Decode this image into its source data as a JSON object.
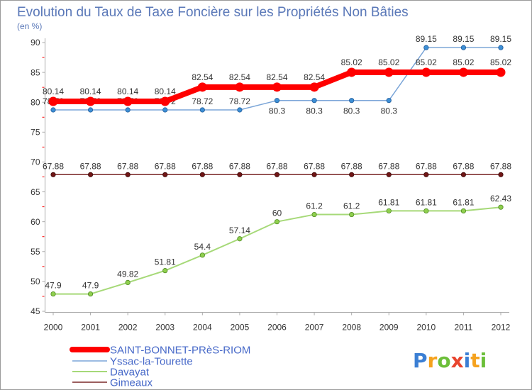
{
  "chart_data": {
    "type": "line",
    "title": "Evolution du Taux de Taxe Foncière sur les Propriétés Non Bâties",
    "subtitle": "(en %)",
    "xlabel": "",
    "ylabel": "",
    "x": [
      2000,
      2001,
      2002,
      2003,
      2004,
      2005,
      2006,
      2007,
      2008,
      2009,
      2010,
      2011,
      2012
    ],
    "ylim": [
      45,
      90
    ],
    "y_ticks": [
      45,
      50,
      55,
      60,
      65,
      70,
      75,
      80,
      85,
      90
    ],
    "grid": false,
    "legend": "bottom-left",
    "series": [
      {
        "name": "SAINT-BONNET-PRèS-RIOM",
        "color": "#ff0000",
        "marker_color": "#ff0000",
        "marker_edge": "#ff0000",
        "values": [
          80.14,
          80.14,
          80.14,
          80.14,
          82.54,
          82.54,
          82.54,
          82.54,
          85.02,
          85.02,
          85.02,
          85.02,
          85.02
        ]
      },
      {
        "name": "Yssac-la-Tourette",
        "color": "#7ca6d8",
        "marker_color": "#3d8fd5",
        "marker_edge": "#1f5a99",
        "values": [
          78.72,
          78.72,
          78.72,
          78.72,
          78.72,
          78.72,
          80.3,
          80.3,
          80.3,
          80.3,
          89.15,
          89.15,
          89.15
        ]
      },
      {
        "name": "Davayat",
        "color": "#a6d978",
        "marker_color": "#8fcf4e",
        "marker_edge": "#4f8a22",
        "values": [
          47.9,
          47.9,
          49.82,
          51.81,
          54.4,
          57.14,
          60,
          61.2,
          61.2,
          61.81,
          61.81,
          61.81,
          62.43
        ]
      },
      {
        "name": "Gimeaux",
        "color": "#7c2a2a",
        "marker_color": "#701515",
        "marker_edge": "#3d0d0d",
        "values": [
          67.88,
          67.88,
          67.88,
          67.88,
          67.88,
          67.88,
          67.88,
          67.88,
          67.88,
          67.88,
          67.88,
          67.88,
          67.88
        ]
      }
    ]
  },
  "theme": {
    "title_color": "#5a78b8",
    "legend_text_color": "#4668c8",
    "label_color": "#333333",
    "axis_color": "#aaaaaa",
    "minor_tick_color": "#ff0000",
    "frame_color": "#9a9a9a",
    "background": "#ffffff"
  },
  "logo": {
    "text": "Proxiti",
    "letter_colors": [
      "#3b7fd4",
      "#f5a21e",
      "#6cbf3a",
      "#e8452e",
      "#3b7fd4",
      "#f5a21e",
      "#6cbf3a"
    ]
  }
}
